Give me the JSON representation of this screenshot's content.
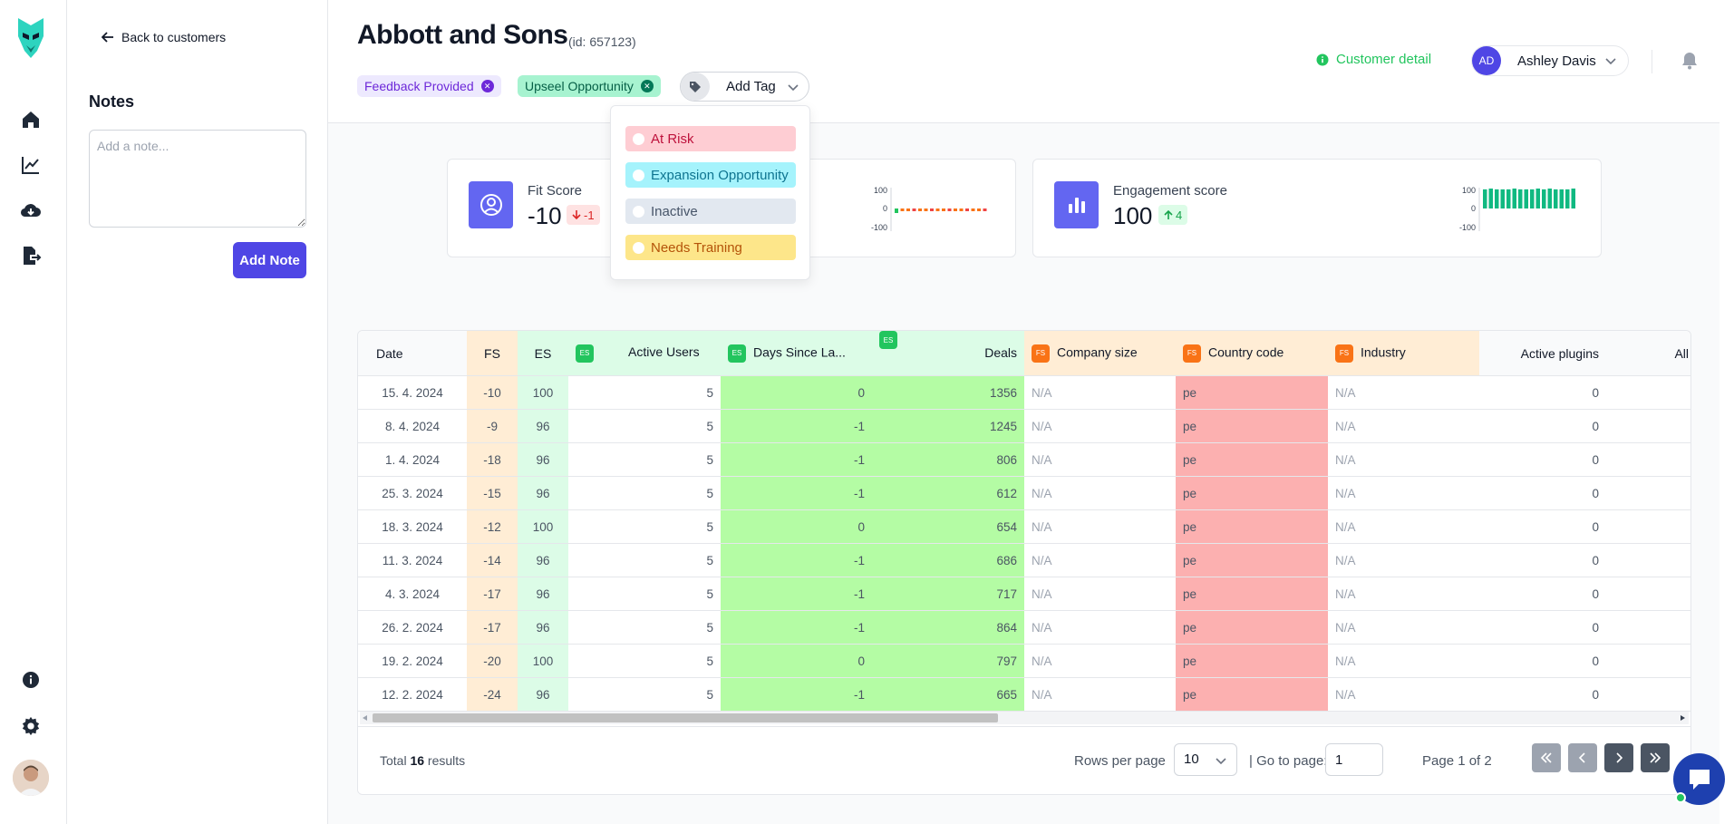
{
  "nav": {
    "back": "Back to customers"
  },
  "notes": {
    "title": "Notes",
    "placeholder": "Add a note...",
    "add_label": "Add Note"
  },
  "customer": {
    "name": "Abbott and Sons",
    "id_text": "(id: 657123)"
  },
  "tags": [
    {
      "label": "Feedback Provided",
      "bg": "#ede9fe",
      "fg": "#6d28d9",
      "x": "#6d28d9"
    },
    {
      "label": "Upseel Opportunity",
      "bg": "#a7f3d0",
      "fg": "#065f46",
      "x": "#047857"
    }
  ],
  "add_tag": "Add Tag",
  "tag_options": [
    {
      "label": "At Risk",
      "bg": "#fecdd3",
      "fg": "#be123c"
    },
    {
      "label": "Expansion Opportunity",
      "bg": "#a5f3fc",
      "fg": "#0e7490"
    },
    {
      "label": "Inactive",
      "bg": "#e2e8f0",
      "fg": "#475569"
    },
    {
      "label": "Needs Training",
      "bg": "#fde68a",
      "fg": "#b45309"
    }
  ],
  "header": {
    "customer_detail": "Customer detail",
    "user_initials": "AD",
    "user_name": "Ashley Davis"
  },
  "cards": {
    "fit": {
      "label": "Fit Score",
      "value": "-10",
      "delta": "-1",
      "axis": [
        "100",
        "0",
        "-100"
      ]
    },
    "engagement": {
      "label": "Engagement score",
      "value": "100",
      "delta": "4",
      "axis": [
        "100",
        "0",
        "-100"
      ]
    }
  },
  "table": {
    "badges": {
      "fs": "FS",
      "es": "ES"
    },
    "headers": {
      "date": "Date",
      "fs": "FS",
      "es": "ES",
      "active_users": "Active Users",
      "days_since": "Days Since La...",
      "deals": "Deals",
      "company_size": "Company size",
      "country_code": "Country code",
      "industry": "Industry",
      "active_plugins": "Active plugins",
      "all_u": "All U"
    },
    "rows": [
      {
        "date": "15. 4. 2024",
        "fs": "-10",
        "es": "100",
        "active_users": "5",
        "days": "0",
        "deals": "1356",
        "company": "N/A",
        "country": "pe",
        "industry": "N/A",
        "plugins": "0"
      },
      {
        "date": "8. 4. 2024",
        "fs": "-9",
        "es": "96",
        "active_users": "5",
        "days": "-1",
        "deals": "1245",
        "company": "N/A",
        "country": "pe",
        "industry": "N/A",
        "plugins": "0"
      },
      {
        "date": "1. 4. 2024",
        "fs": "-18",
        "es": "96",
        "active_users": "5",
        "days": "-1",
        "deals": "806",
        "company": "N/A",
        "country": "pe",
        "industry": "N/A",
        "plugins": "0"
      },
      {
        "date": "25. 3. 2024",
        "fs": "-15",
        "es": "96",
        "active_users": "5",
        "days": "-1",
        "deals": "612",
        "company": "N/A",
        "country": "pe",
        "industry": "N/A",
        "plugins": "0"
      },
      {
        "date": "18. 3. 2024",
        "fs": "-12",
        "es": "100",
        "active_users": "5",
        "days": "0",
        "deals": "654",
        "company": "N/A",
        "country": "pe",
        "industry": "N/A",
        "plugins": "0"
      },
      {
        "date": "11. 3. 2024",
        "fs": "-14",
        "es": "96",
        "active_users": "5",
        "days": "-1",
        "deals": "686",
        "company": "N/A",
        "country": "pe",
        "industry": "N/A",
        "plugins": "0"
      },
      {
        "date": "4. 3. 2024",
        "fs": "-17",
        "es": "96",
        "active_users": "5",
        "days": "-1",
        "deals": "717",
        "company": "N/A",
        "country": "pe",
        "industry": "N/A",
        "plugins": "0"
      },
      {
        "date": "26. 2. 2024",
        "fs": "-17",
        "es": "96",
        "active_users": "5",
        "days": "-1",
        "deals": "864",
        "company": "N/A",
        "country": "pe",
        "industry": "N/A",
        "plugins": "0"
      },
      {
        "date": "19. 2. 2024",
        "fs": "-20",
        "es": "100",
        "active_users": "5",
        "days": "0",
        "deals": "797",
        "company": "N/A",
        "country": "pe",
        "industry": "N/A",
        "plugins": "0"
      },
      {
        "date": "12. 2. 2024",
        "fs": "-24",
        "es": "96",
        "active_users": "5",
        "days": "-1",
        "deals": "665",
        "company": "N/A",
        "country": "pe",
        "industry": "N/A",
        "plugins": "0"
      }
    ]
  },
  "footer": {
    "total_prefix": "Total ",
    "total_count": "16",
    "total_suffix": " results",
    "rows_per_page_label": "Rows per page",
    "rows_per_page_value": "10",
    "goto_label": "| Go to page:",
    "goto_value": "1",
    "page_of": "Page 1 of 2"
  },
  "colors": {
    "accent": "#4f46e5",
    "success": "#22c55e",
    "danger": "#ef4444",
    "fs_badge": "#f97316",
    "es_badge": "#22c55e"
  }
}
